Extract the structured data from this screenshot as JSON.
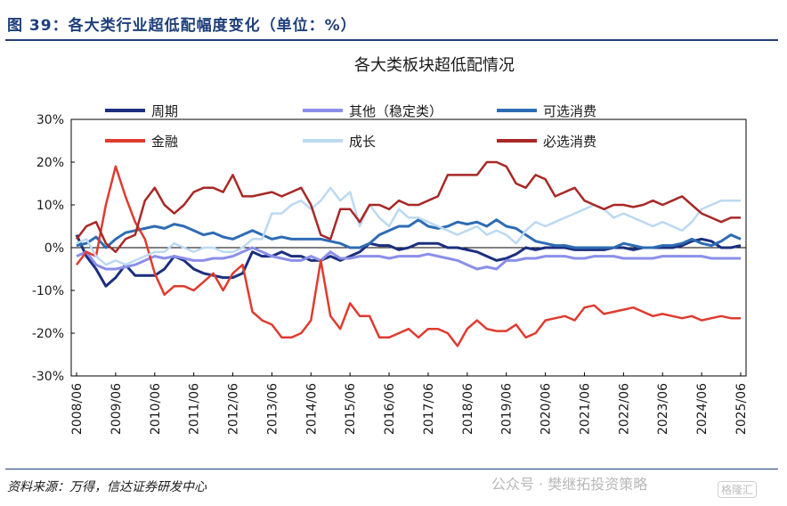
{
  "figure": {
    "title": "图 39：各大类行业超低配幅度变化（单位：%）",
    "source": "资料来源：万得，信达证券研发中心",
    "watermark": "公众号 · 樊继拓投资策略",
    "logo": "格隆汇"
  },
  "chart_data": {
    "type": "line",
    "title": "各大类板块超低配情况",
    "xlabel": "",
    "ylabel": "",
    "ylim": [
      -30,
      30
    ],
    "yticks": [
      -30,
      -20,
      -10,
      0,
      10,
      20,
      30
    ],
    "ytick_labels": [
      "-30%",
      "-20%",
      "-10%",
      "0%",
      "10%",
      "20%",
      "30%"
    ],
    "xlim": [
      2008.5,
      2025.5
    ],
    "xtick_labels": [
      "2008/06",
      "2009/06",
      "2010/06",
      "2011/06",
      "2012/06",
      "2013/06",
      "2014/06",
      "2015/06",
      "2016/06",
      "2017/06",
      "2018/06",
      "2019/06",
      "2020/06",
      "2021/06",
      "2022/06",
      "2023/06",
      "2024/06",
      "2025/06"
    ],
    "legend": "top",
    "grid": false,
    "series": [
      {
        "name": "周期",
        "color": "#1c2f7e",
        "width": 3,
        "x": [
          2008.5,
          2008.75,
          2009.0,
          2009.25,
          2009.5,
          2009.75,
          2010.0,
          2010.25,
          2010.5,
          2010.75,
          2011.0,
          2011.25,
          2011.5,
          2011.75,
          2012.0,
          2012.25,
          2012.5,
          2012.75,
          2013.0,
          2013.25,
          2013.5,
          2013.75,
          2014.0,
          2014.25,
          2014.5,
          2014.75,
          2015.0,
          2015.25,
          2015.5,
          2015.75,
          2016.0,
          2016.25,
          2016.5,
          2016.75,
          2017.0,
          2017.25,
          2017.5,
          2017.75,
          2018.0,
          2018.25,
          2018.5,
          2018.75,
          2019.0,
          2019.25,
          2019.5,
          2019.75,
          2020.0,
          2020.25,
          2020.5,
          2020.75,
          2021.0,
          2021.25,
          2021.5,
          2021.75,
          2022.0,
          2022.25,
          2022.5,
          2022.75,
          2023.0,
          2023.25,
          2023.5,
          2023.75,
          2024.0,
          2024.25,
          2024.5,
          2024.75,
          2025.0,
          2025.25,
          2025.5
        ],
        "y": [
          3,
          -2,
          -5,
          -9,
          -7,
          -4,
          -6.5,
          -6.5,
          -6.5,
          -5,
          -2,
          -3,
          -5,
          -6,
          -6.5,
          -7,
          -7,
          -6,
          -1,
          -2,
          -2,
          -1,
          -2,
          -2,
          -3,
          -3,
          -2,
          -3,
          -2,
          -1,
          1,
          0.5,
          0.5,
          -0.5,
          0,
          1,
          1,
          1,
          0,
          0,
          -0.5,
          -1,
          -2,
          -3,
          -2.5,
          -1.5,
          0,
          -0.5,
          0,
          0,
          0,
          -0.5,
          -0.5,
          -0.5,
          -0.5,
          0,
          0,
          -0.5,
          0,
          0,
          0,
          0,
          0.5,
          1.5,
          2,
          1.5,
          0,
          0,
          0.5
        ]
      },
      {
        "name": "其他（稳定类）",
        "color": "#8b8fe8",
        "width": 3,
        "x": [
          2008.5,
          2008.75,
          2009.0,
          2009.25,
          2009.5,
          2009.75,
          2010.0,
          2010.25,
          2010.5,
          2010.75,
          2011.0,
          2011.25,
          2011.5,
          2011.75,
          2012.0,
          2012.25,
          2012.5,
          2012.75,
          2013.0,
          2013.25,
          2013.5,
          2013.75,
          2014.0,
          2014.25,
          2014.5,
          2014.75,
          2015.0,
          2015.25,
          2015.5,
          2015.75,
          2016.0,
          2016.25,
          2016.5,
          2016.75,
          2017.0,
          2017.25,
          2017.5,
          2017.75,
          2018.0,
          2018.25,
          2018.5,
          2018.75,
          2019.0,
          2019.25,
          2019.5,
          2019.75,
          2020.0,
          2020.25,
          2020.5,
          2020.75,
          2021.0,
          2021.25,
          2021.5,
          2021.75,
          2022.0,
          2022.25,
          2022.5,
          2022.75,
          2023.0,
          2023.25,
          2023.5,
          2023.75,
          2024.0,
          2024.25,
          2024.5,
          2024.75,
          2025.0,
          2025.25,
          2025.5
        ],
        "y": [
          -2,
          -1,
          -4,
          -5,
          -5,
          -4.5,
          -4,
          -3,
          -2,
          -2.5,
          -2,
          -2.5,
          -3,
          -3,
          -2.5,
          -2.5,
          -2,
          -1,
          0,
          -1,
          -2,
          -2.5,
          -3,
          -3,
          -2,
          -3,
          -1,
          -2.5,
          -2.5,
          -2,
          -2,
          -2,
          -2.5,
          -2,
          -2,
          -2,
          -1.5,
          -2,
          -2.5,
          -3,
          -4,
          -5,
          -4.5,
          -5,
          -3,
          -3,
          -2.5,
          -2.5,
          -2,
          -2,
          -2,
          -2.5,
          -2.5,
          -2,
          -2,
          -2,
          -2.5,
          -2.5,
          -2.5,
          -2.5,
          -2,
          -2,
          -2,
          -2,
          -2,
          -2.5,
          -2.5,
          -2.5,
          -2.5
        ]
      },
      {
        "name": "可选消费",
        "color": "#2e6cb4",
        "width": 3,
        "x": [
          2008.5,
          2008.75,
          2009.0,
          2009.25,
          2009.5,
          2009.75,
          2010.0,
          2010.25,
          2010.5,
          2010.75,
          2011.0,
          2011.25,
          2011.5,
          2011.75,
          2012.0,
          2012.25,
          2012.5,
          2012.75,
          2013.0,
          2013.25,
          2013.5,
          2013.75,
          2014.0,
          2014.25,
          2014.5,
          2014.75,
          2015.0,
          2015.25,
          2015.5,
          2015.75,
          2016.0,
          2016.25,
          2016.5,
          2016.75,
          2017.0,
          2017.25,
          2017.5,
          2017.75,
          2018.0,
          2018.25,
          2018.5,
          2018.75,
          2019.0,
          2019.25,
          2019.5,
          2019.75,
          2020.0,
          2020.25,
          2020.5,
          2020.75,
          2021.0,
          2021.25,
          2021.5,
          2021.75,
          2022.0,
          2022.25,
          2022.5,
          2022.75,
          2023.0,
          2023.25,
          2023.5,
          2023.75,
          2024.0,
          2024.25,
          2024.5,
          2024.75,
          2025.0,
          2025.25,
          2025.5
        ],
        "y": [
          0.5,
          1,
          2.5,
          0,
          2,
          3.5,
          4,
          4.5,
          5,
          4.5,
          5.5,
          5,
          4,
          3,
          3.5,
          2.5,
          2,
          3,
          4,
          3,
          2,
          2.5,
          2,
          2,
          2,
          2,
          1.5,
          1,
          0,
          0,
          1,
          3,
          4,
          5,
          5,
          6.5,
          5,
          4.5,
          5,
          6,
          5.5,
          6,
          5,
          6.5,
          5,
          4.5,
          3,
          1.5,
          1,
          0.5,
          0.5,
          0,
          0,
          0,
          0,
          0,
          1,
          0.5,
          0,
          0,
          0.5,
          0.5,
          1,
          2,
          1,
          0.5,
          1.5,
          3,
          2
        ]
      },
      {
        "name": "金融",
        "color": "#e03b2f",
        "width": 2.5,
        "x": [
          2008.5,
          2008.75,
          2009.0,
          2009.25,
          2009.5,
          2009.75,
          2010.0,
          2010.25,
          2010.5,
          2010.75,
          2011.0,
          2011.25,
          2011.5,
          2011.75,
          2012.0,
          2012.25,
          2012.5,
          2012.75,
          2013.0,
          2013.25,
          2013.5,
          2013.75,
          2014.0,
          2014.25,
          2014.5,
          2014.75,
          2015.0,
          2015.25,
          2015.5,
          2015.75,
          2016.0,
          2016.25,
          2016.5,
          2016.75,
          2017.0,
          2017.25,
          2017.5,
          2017.75,
          2018.0,
          2018.25,
          2018.5,
          2018.75,
          2019.0,
          2019.25,
          2019.5,
          2019.75,
          2020.0,
          2020.25,
          2020.5,
          2020.75,
          2021.0,
          2021.25,
          2021.5,
          2021.75,
          2022.0,
          2022.25,
          2022.5,
          2022.75,
          2023.0,
          2023.25,
          2023.5,
          2023.75,
          2024.0,
          2024.25,
          2024.5,
          2024.75,
          2025.0,
          2025.25,
          2025.5
        ],
        "y": [
          -4,
          -1,
          -2,
          10,
          19,
          12,
          6,
          2,
          -6,
          -11,
          -9,
          -9,
          -10,
          -8,
          -6,
          -10,
          -6,
          -4,
          -15,
          -17,
          -18,
          -21,
          -21,
          -20,
          -17,
          -3,
          -16,
          -19,
          -13,
          -16,
          -16,
          -21,
          -21,
          -20,
          -19,
          -21,
          -19,
          -19,
          -20,
          -23,
          -19,
          -17,
          -19,
          -19.5,
          -19.5,
          -18,
          -21,
          -20,
          -17,
          -16.5,
          -16,
          -17,
          -14,
          -13.5,
          -15.5,
          -15,
          -14.5,
          -14,
          -15,
          -16,
          -15.5,
          -16,
          -16.5,
          -16,
          -17,
          -16.5,
          -16,
          -16.5,
          -16.5
        ]
      },
      {
        "name": "成长",
        "color": "#bcd9f2",
        "width": 2.5,
        "x": [
          2008.5,
          2008.75,
          2009.0,
          2009.25,
          2009.5,
          2009.75,
          2010.0,
          2010.25,
          2010.5,
          2010.75,
          2011.0,
          2011.25,
          2011.5,
          2011.75,
          2012.0,
          2012.25,
          2012.5,
          2012.75,
          2013.0,
          2013.25,
          2013.5,
          2013.75,
          2014.0,
          2014.25,
          2014.5,
          2014.75,
          2015.0,
          2015.25,
          2015.5,
          2015.75,
          2016.0,
          2016.25,
          2016.5,
          2016.75,
          2017.0,
          2017.25,
          2017.5,
          2017.75,
          2018.0,
          2018.25,
          2018.5,
          2018.75,
          2019.0,
          2019.25,
          2019.5,
          2019.75,
          2020.0,
          2020.25,
          2020.5,
          2020.75,
          2021.0,
          2021.25,
          2021.5,
          2021.75,
          2022.0,
          2022.25,
          2022.5,
          2022.75,
          2023.0,
          2023.25,
          2023.5,
          2023.75,
          2024.0,
          2024.25,
          2024.5,
          2024.75,
          2025.0,
          2025.25,
          2025.5
        ],
        "y": [
          1,
          2,
          -2,
          -4,
          -3,
          -4,
          -3,
          -2,
          -1,
          -1,
          1,
          0,
          -1,
          0,
          0,
          -1,
          -1,
          0,
          2,
          2,
          8,
          8,
          10,
          11,
          9,
          11,
          14,
          11,
          13,
          5,
          10,
          7,
          5,
          9,
          7,
          7,
          6,
          5,
          4,
          3,
          4,
          5,
          3,
          4,
          3,
          1,
          4,
          6,
          5,
          6,
          7,
          8,
          9,
          10,
          9,
          7,
          8,
          7,
          6,
          5,
          6,
          5,
          4,
          6,
          9,
          10,
          11,
          11,
          11
        ]
      },
      {
        "name": "必选消费",
        "color": "#a82826",
        "width": 2.5,
        "x": [
          2008.5,
          2008.75,
          2009.0,
          2009.25,
          2009.5,
          2009.75,
          2010.0,
          2010.25,
          2010.5,
          2010.75,
          2011.0,
          2011.25,
          2011.5,
          2011.75,
          2012.0,
          2012.25,
          2012.5,
          2012.75,
          2013.0,
          2013.25,
          2013.5,
          2013.75,
          2014.0,
          2014.25,
          2014.5,
          2014.75,
          2015.0,
          2015.25,
          2015.5,
          2015.75,
          2016.0,
          2016.25,
          2016.5,
          2016.75,
          2017.0,
          2017.25,
          2017.5,
          2017.75,
          2018.0,
          2018.25,
          2018.5,
          2018.75,
          2019.0,
          2019.25,
          2019.5,
          2019.75,
          2020.0,
          2020.25,
          2020.5,
          2020.75,
          2021.0,
          2021.25,
          2021.5,
          2021.75,
          2022.0,
          2022.25,
          2022.5,
          2022.75,
          2023.0,
          2023.25,
          2023.5,
          2023.75,
          2024.0,
          2024.25,
          2024.5,
          2024.75,
          2025.0,
          2025.25,
          2025.5
        ],
        "y": [
          2,
          5,
          6,
          1,
          -1,
          2,
          3,
          11,
          14,
          10,
          8,
          10,
          13,
          14,
          14,
          13,
          17,
          12,
          12,
          12.5,
          13,
          12,
          13,
          14,
          10,
          3,
          2,
          9,
          9,
          6,
          10,
          10,
          9,
          11,
          10,
          10,
          11,
          12,
          17,
          17,
          17,
          17,
          20,
          20,
          19,
          15,
          14,
          17,
          16,
          12,
          13,
          14,
          11,
          10,
          9,
          10,
          10,
          9.5,
          10,
          11,
          10,
          11,
          12,
          10,
          8,
          7,
          6,
          7,
          7
        ]
      }
    ]
  }
}
